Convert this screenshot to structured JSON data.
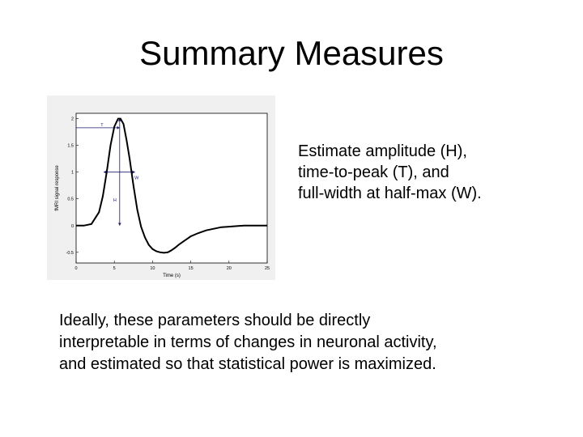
{
  "slide": {
    "title": "Summary Measures",
    "side_text": [
      "Estimate amplitude (H),",
      "time-to-peak (T), and",
      "full-width at half-max (W)."
    ],
    "body_text": [
      "Ideally, these parameters should be directly",
      "interpretable in terms of changes in neuronal activity,",
      "and estimated so that statistical power is maximized."
    ]
  },
  "chart_data": {
    "type": "line",
    "title": "",
    "xlabel": "Time (s)",
    "ylabel": "fMRI signal response",
    "xlim": [
      0,
      25
    ],
    "ylim": [
      -0.7,
      2.1
    ],
    "xticks": [
      0,
      5,
      10,
      15,
      20,
      25
    ],
    "yticks": [
      -0.5,
      0,
      0.5,
      1,
      1.5,
      2
    ],
    "grid": false,
    "series": [
      {
        "name": "",
        "x": [
          0,
          1,
          2,
          3,
          3.5,
          4,
          4.5,
          5,
          5.5,
          5.8,
          6.2,
          6.6,
          7,
          7.5,
          8,
          8.5,
          9,
          9.5,
          10,
          10.5,
          11,
          11.5,
          12,
          12.5,
          13,
          13.5,
          14,
          14.5,
          15,
          16,
          17,
          18,
          19,
          20,
          21,
          22,
          23,
          24,
          25
        ],
        "y": [
          0,
          0,
          0.03,
          0.25,
          0.55,
          1.0,
          1.5,
          1.85,
          2.0,
          2.0,
          1.9,
          1.6,
          1.25,
          0.75,
          0.3,
          -0.02,
          -0.22,
          -0.36,
          -0.44,
          -0.48,
          -0.5,
          -0.51,
          -0.5,
          -0.46,
          -0.41,
          -0.35,
          -0.3,
          -0.25,
          -0.2,
          -0.14,
          -0.09,
          -0.06,
          -0.03,
          -0.02,
          -0.01,
          0,
          0,
          0,
          0
        ]
      }
    ],
    "annotations": [
      {
        "label": "T",
        "type": "horizontal-arrow",
        "x1": 0,
        "x2": 5.7,
        "y": 1.83
      },
      {
        "label": "H",
        "type": "vertical-arrow",
        "x": 5.7,
        "y1": 0,
        "y2": 2.0
      },
      {
        "label": "W",
        "type": "horizontal-arrow",
        "x1": 3.6,
        "x2": 7.7,
        "y": 1.0
      }
    ]
  }
}
